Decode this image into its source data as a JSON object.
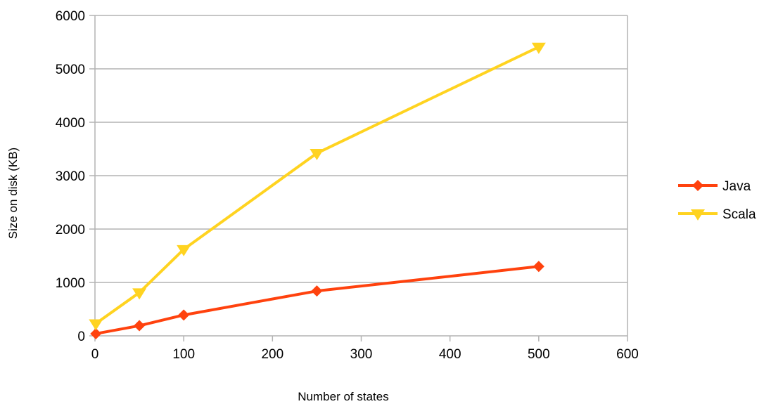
{
  "chart_data": {
    "type": "line",
    "xlabel": "Number of states",
    "ylabel": "Size on disk (KB)",
    "xlim": [
      0,
      600
    ],
    "ylim": [
      0,
      6000
    ],
    "x_ticks": [
      "0",
      "100",
      "200",
      "300",
      "400",
      "500",
      "600"
    ],
    "y_ticks": [
      "0",
      "1000",
      "2000",
      "3000",
      "4000",
      "5000",
      "6000"
    ],
    "grid": "horizontal",
    "legend_position": "right",
    "series": [
      {
        "name": "Java",
        "color": "#ff420e",
        "marker": "diamond",
        "x": [
          1,
          50,
          100,
          250,
          500
        ],
        "y": [
          40,
          190,
          390,
          840,
          1300
        ]
      },
      {
        "name": "Scala",
        "color": "#ffd320",
        "marker": "triangle-down",
        "x": [
          1,
          50,
          100,
          250,
          500
        ],
        "y": [
          230,
          810,
          1620,
          3420,
          5410
        ]
      }
    ]
  }
}
